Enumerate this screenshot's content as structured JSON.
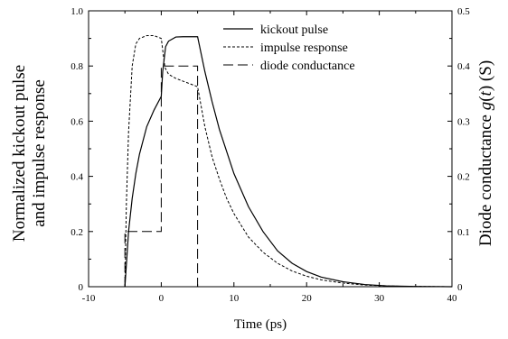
{
  "chart_data": {
    "type": "line",
    "xlabel": "Time (ps)",
    "ylabel_left_line1": "Normalized kickout pulse",
    "ylabel_left_line2": "and impulse response",
    "ylabel_right_prefix": "Diode conductance ",
    "ylabel_right_italic": "g",
    "ylabel_right_paren": "(",
    "ylabel_right_t": "t",
    "ylabel_right_suffix": ") (S)",
    "xlim": [
      -10,
      40
    ],
    "ylim_left": [
      0,
      1.0
    ],
    "ylim_right": [
      0,
      0.5
    ],
    "xticks": [
      -10,
      0,
      10,
      20,
      30,
      40
    ],
    "xtick_labels": [
      "-10",
      "0",
      "10",
      "20",
      "30",
      "40"
    ],
    "yticks_left": [
      0,
      0.2,
      0.4,
      0.6,
      0.8,
      1.0
    ],
    "ytick_labels_left": [
      "0",
      "0.2",
      "0.4",
      "0.6",
      "0.8",
      "1.0"
    ],
    "yticks_right": [
      0,
      0.1,
      0.2,
      0.3,
      0.4,
      0.5
    ],
    "ytick_labels_right": [
      "0",
      "0.1",
      "0.2",
      "0.3",
      "0.4",
      "0.5"
    ],
    "legend_position": "top-right",
    "series": [
      {
        "name": "kickout pulse",
        "style": "solid",
        "axis": "left",
        "x": [
          -5,
          -4.5,
          -4,
          -3.5,
          -3,
          -2,
          -1,
          0,
          0.2,
          0.6,
          1,
          2,
          3,
          4,
          5,
          6,
          7,
          8,
          9,
          10,
          12,
          14,
          16,
          18,
          20,
          22,
          25,
          28,
          31,
          35,
          40
        ],
        "y": [
          0,
          0.2,
          0.32,
          0.41,
          0.48,
          0.58,
          0.64,
          0.69,
          0.78,
          0.87,
          0.89,
          0.905,
          0.906,
          0.906,
          0.906,
          0.78,
          0.67,
          0.57,
          0.49,
          0.41,
          0.29,
          0.2,
          0.13,
          0.085,
          0.055,
          0.035,
          0.018,
          0.008,
          0.003,
          0.001,
          0
        ]
      },
      {
        "name": "impulse response",
        "style": "dotted",
        "axis": "left",
        "x": [
          -5,
          -4.8,
          -4.5,
          -4,
          -3.5,
          -3,
          -2,
          -1,
          -0.5,
          0,
          0.5,
          1,
          2,
          3,
          4,
          5,
          6,
          7,
          8,
          9,
          10,
          12,
          14,
          16,
          18,
          20,
          22,
          25,
          28,
          32,
          36,
          40
        ],
        "y": [
          0,
          0.3,
          0.56,
          0.8,
          0.88,
          0.9,
          0.91,
          0.91,
          0.905,
          0.9,
          0.795,
          0.77,
          0.755,
          0.745,
          0.735,
          0.725,
          0.58,
          0.47,
          0.39,
          0.32,
          0.265,
          0.18,
          0.125,
          0.085,
          0.057,
          0.038,
          0.025,
          0.013,
          0.006,
          0.002,
          0.001,
          0
        ]
      },
      {
        "name": "diode conductance",
        "style": "dashed",
        "axis": "right",
        "x": [
          -5,
          -5,
          0,
          0,
          5,
          5,
          40
        ],
        "y": [
          0,
          0.1,
          0.1,
          0.4,
          0.4,
          0,
          0
        ]
      }
    ]
  }
}
